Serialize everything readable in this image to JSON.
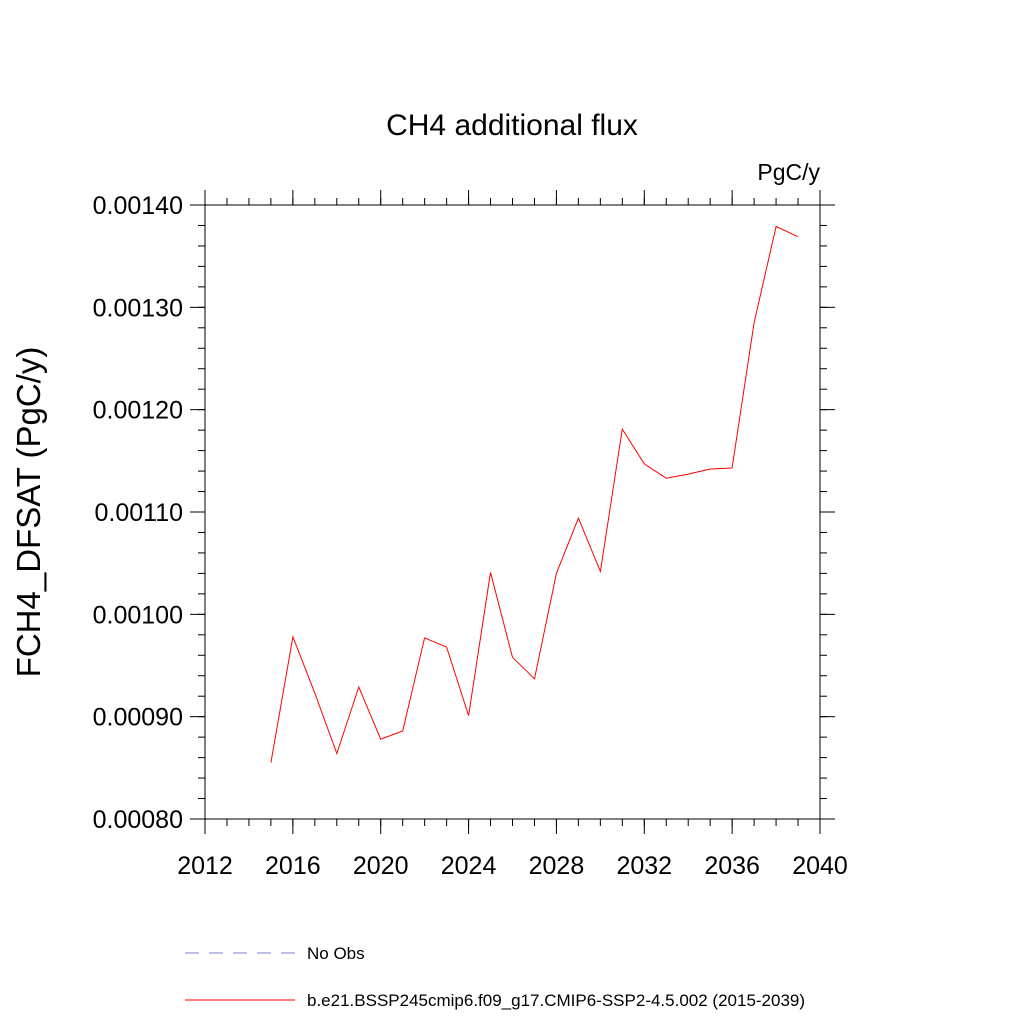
{
  "chart_data": {
    "type": "line",
    "title": "CH4 additional flux",
    "units_label": "PgC/y",
    "ylabel": "FCH4_DFSAT  (PgC/y)",
    "xlabel": "",
    "xlim": [
      2012,
      2040
    ],
    "ylim": [
      0.0008,
      0.0014
    ],
    "x_ticks": [
      2012,
      2016,
      2020,
      2024,
      2028,
      2032,
      2036,
      2040
    ],
    "x_tick_labels": [
      "2012",
      "2016",
      "2020",
      "2024",
      "2028",
      "2032",
      "2036",
      "2040"
    ],
    "y_ticks": [
      0.0008,
      0.0009,
      0.001,
      0.0011,
      0.0012,
      0.0013,
      0.0014
    ],
    "y_tick_labels": [
      "0.00080",
      "0.00090",
      "0.00100",
      "0.00110",
      "0.00120",
      "0.00130",
      "0.00140"
    ],
    "x_minor_step": 1,
    "y_minor_step": 2e-05,
    "grid": false,
    "legend_position": "bottom",
    "series": [
      {
        "name": "b.e21.BSSP245cmip6.f09_g17.CMIP6-SSP2-4.5.002 (2015-2039)",
        "color": "#ff0000",
        "dash": "solid",
        "x": [
          2015,
          2016,
          2017,
          2018,
          2019,
          2020,
          2021,
          2022,
          2023,
          2024,
          2025,
          2026,
          2027,
          2028,
          2029,
          2030,
          2031,
          2032,
          2033,
          2034,
          2035,
          2036,
          2037,
          2038,
          2039
        ],
        "y": [
          0.000855,
          0.000978,
          0.000923,
          0.000864,
          0.000929,
          0.000878,
          0.000886,
          0.000977,
          0.000968,
          0.000901,
          0.001041,
          0.000958,
          0.000937,
          0.00104,
          0.001094,
          0.001042,
          0.001181,
          0.001147,
          0.001133,
          0.001137,
          0.001142,
          0.001143,
          0.001285,
          0.001379,
          0.001369
        ]
      }
    ],
    "legend": [
      {
        "label": "No Obs",
        "color": "#7b7bd6",
        "dash": "dashed"
      },
      {
        "label": "b.e21.BSSP245cmip6.f09_g17.CMIP6-SSP2-4.5.002 (2015-2039)",
        "color": "#ff0000",
        "dash": "solid"
      }
    ]
  }
}
